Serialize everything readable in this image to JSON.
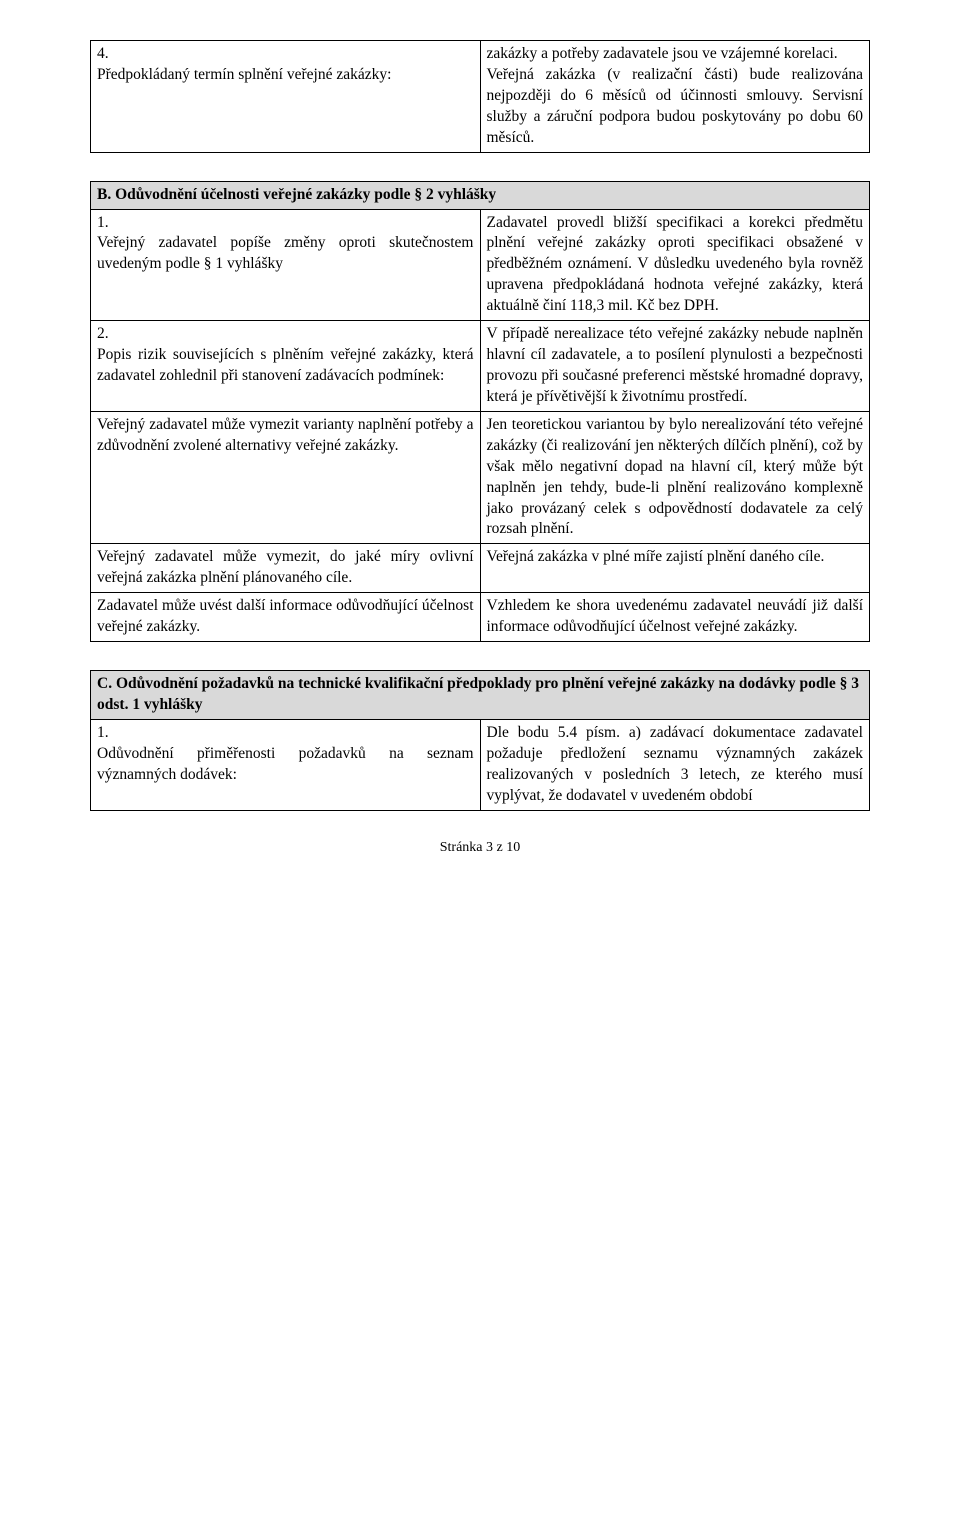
{
  "tableA": {
    "rows": [
      {
        "left": "4.\nPředpokládaný termín splnění veřejné zakázky:",
        "right": "zakázky a potřeby zadavatele jsou ve vzájemné korelaci.\nVeřejná zakázka (v realizační části) bude realizována nejpozději do 6 měsíců od účinnosti smlouvy. Servisní služby a záruční podpora budou poskytovány po dobu 60 měsíců."
      }
    ]
  },
  "tableB": {
    "header": "B. Odůvodnění účelnosti veřejné zakázky podle § 2 vyhlášky",
    "rows": [
      {
        "left": "1.\nVeřejný zadavatel popíše změny oproti skutečnostem uvedeným podle § 1 vyhlášky",
        "right": "Zadavatel provedl bližší specifikaci a korekci předmětu plnění veřejné zakázky oproti specifikaci obsažené v předběžném oznámení. V důsledku uvedeného byla rovněž upravena předpokládaná hodnota veřejné zakázky, která aktuálně činí 118,3 mil. Kč bez DPH."
      },
      {
        "left": "2.\nPopis rizik souvisejících s plněním veřejné zakázky, která zadavatel zohlednil při stanovení zadávacích podmínek:",
        "right": "V případě nerealizace této veřejné zakázky nebude naplněn hlavní cíl zadavatele, a to posílení plynulosti a bezpečnosti provozu při současné preferenci městské hromadné dopravy, která je přívětivější k životnímu prostředí."
      },
      {
        "left": "Veřejný zadavatel může vymezit varianty naplnění potřeby a zdůvodnění zvolené alternativy veřejné zakázky.",
        "right": "Jen teoretickou variantou by bylo nerealizování této veřejné zakázky (či realizování jen některých dílčích plnění), což by však mělo negativní dopad na hlavní cíl, který může být naplněn jen tehdy, bude-li plnění realizováno komplexně jako provázaný celek s odpovědností dodavatele za celý rozsah plnění."
      },
      {
        "left": "Veřejný zadavatel může vymezit, do jaké míry ovlivní veřejná zakázka plnění plánovaného cíle.",
        "right": "Veřejná zakázka v plné míře zajistí plnění daného cíle."
      },
      {
        "left": "Zadavatel může uvést další informace odůvodňující účelnost veřejné zakázky.",
        "right": "Vzhledem ke shora uvedenému zadavatel neuvádí již další informace odůvodňující účelnost veřejné zakázky."
      }
    ]
  },
  "tableC": {
    "header": "C. Odůvodnění požadavků na technické kvalifikační předpoklady pro plnění veřejné zakázky na dodávky podle § 3 odst. 1 vyhlášky",
    "rows": [
      {
        "left": "1.\nOdůvodnění přiměřenosti požadavků na seznam významných dodávek:",
        "right": "Dle bodu 5.4 písm. a) zadávací dokumentace zadavatel požaduje předložení seznamu významných zakázek realizovaných v posledních 3 letech, ze kterého musí vyplývat, že dodavatel v uvedeném období"
      }
    ]
  },
  "footer": "Stránka 3 z 10"
}
